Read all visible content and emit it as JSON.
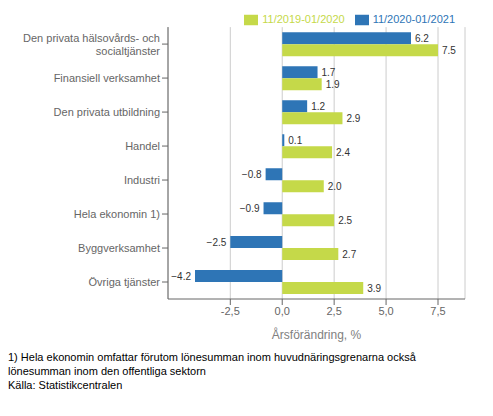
{
  "chart_data": {
    "type": "bar",
    "orientation": "horizontal",
    "categories": [
      "Övriga tjänster",
      "Byggverksamhet",
      "Hela ekonomin 1)",
      "Industri",
      "Handel",
      "Den privata utbildning",
      "Finansiell verksamhet",
      "Den privata hälsovårds- och\nsocialtjänster"
    ],
    "series": [
      {
        "name": "11/2020-01/2021",
        "color": "#2E75B6",
        "values": [
          -4.2,
          -2.5,
          -0.9,
          -0.8,
          0.1,
          1.2,
          1.7,
          6.2
        ],
        "value_labels": [
          "−4.2",
          "−2.5",
          "−0.9",
          "−0.8",
          "0.1",
          "1.2",
          "1.7",
          "6.2"
        ]
      },
      {
        "name": "11/2019-01/2020",
        "color": "#C5D949",
        "values": [
          3.9,
          2.7,
          2.5,
          2.0,
          2.4,
          2.9,
          1.9,
          7.5
        ],
        "value_labels": [
          "3.9",
          "2.7",
          "2.5",
          "2.0",
          "2.4",
          "2.9",
          "1.9",
          "7.5"
        ]
      }
    ],
    "xlabel": "Årsförändring, %",
    "xlim": [
      -5.5,
      8.8
    ],
    "xticks": [
      {
        "value": -2.5,
        "label": "-2,5"
      },
      {
        "value": 0.0,
        "label": "0,0"
      },
      {
        "value": 2.5,
        "label": "2,5"
      },
      {
        "value": 5.0,
        "label": "5,0"
      },
      {
        "value": 7.5,
        "label": "7,5"
      }
    ],
    "grid": true,
    "legend": "upper right",
    "data_labels": true,
    "annotations": [
      "1) Hela ekonomin omfattar förutom lönesumman inom huvudnäringsgrenarna också",
      "lönesumman inom den offentliga sektorn",
      "Källa: Statistikcentralen"
    ]
  }
}
